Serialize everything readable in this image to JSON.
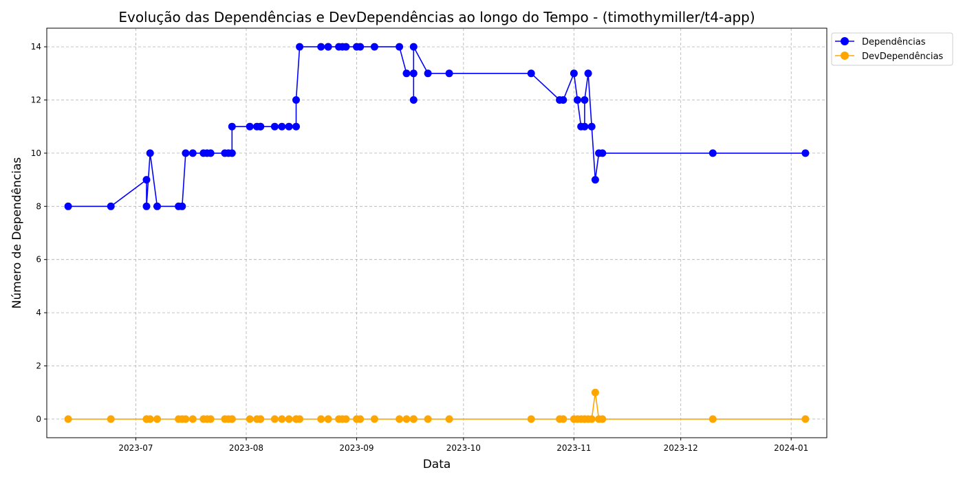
{
  "chart_data": {
    "type": "line",
    "title": "Evolução das Dependências e DevDependências ao longo do Tempo - (timothymiller/t4-app)",
    "xlabel": "Data",
    "ylabel": "Número de Dependências",
    "xlim": [
      "2023-06-06",
      "2024-01-11"
    ],
    "ylim": [
      -0.7,
      14.7
    ],
    "grid": true,
    "legend_position": "outside-top-right",
    "x_ticks": [
      "2023-07",
      "2023-08",
      "2023-09",
      "2023-10",
      "2023-11",
      "2023-12",
      "2024-01"
    ],
    "y_ticks": [
      0,
      2,
      4,
      6,
      8,
      10,
      12,
      14
    ],
    "x": [
      "2023-06-12",
      "2023-06-24",
      "2023-07-04",
      "2023-07-04",
      "2023-07-05",
      "2023-07-07",
      "2023-07-13",
      "2023-07-14",
      "2023-07-15",
      "2023-07-17",
      "2023-07-20",
      "2023-07-21",
      "2023-07-22",
      "2023-07-26",
      "2023-07-27",
      "2023-07-28",
      "2023-07-28",
      "2023-08-02",
      "2023-08-04",
      "2023-08-05",
      "2023-08-05",
      "2023-08-09",
      "2023-08-11",
      "2023-08-13",
      "2023-08-15",
      "2023-08-15",
      "2023-08-16",
      "2023-08-22",
      "2023-08-24",
      "2023-08-24",
      "2023-08-27",
      "2023-08-28",
      "2023-08-29",
      "2023-09-01",
      "2023-09-02",
      "2023-09-06",
      "2023-09-13",
      "2023-09-15",
      "2023-09-17",
      "2023-09-17",
      "2023-09-17",
      "2023-09-21",
      "2023-09-27",
      "2023-10-20",
      "2023-10-28",
      "2023-10-29",
      "2023-11-01",
      "2023-11-02",
      "2023-11-03",
      "2023-11-04",
      "2023-11-04",
      "2023-11-05",
      "2023-11-06",
      "2023-11-07",
      "2023-11-08",
      "2023-11-09",
      "2023-12-10",
      "2024-01-05"
    ],
    "series": [
      {
        "name": "Dependências",
        "color": "#0000ff",
        "values": [
          8,
          8,
          9,
          8,
          10,
          8,
          8,
          8,
          10,
          10,
          10,
          10,
          10,
          10,
          10,
          10,
          11,
          11,
          11,
          11,
          11,
          11,
          11,
          11,
          11,
          12,
          14,
          14,
          14,
          14,
          14,
          14,
          14,
          14,
          14,
          14,
          14,
          13,
          13,
          12,
          14,
          13,
          13,
          13,
          12,
          12,
          13,
          12,
          11,
          11,
          12,
          13,
          11,
          9,
          10,
          10,
          10,
          10
        ]
      },
      {
        "name": "DevDependências",
        "color": "#ffa500",
        "values": [
          0,
          0,
          0,
          0,
          0,
          0,
          0,
          0,
          0,
          0,
          0,
          0,
          0,
          0,
          0,
          0,
          0,
          0,
          0,
          0,
          0,
          0,
          0,
          0,
          0,
          0,
          0,
          0,
          0,
          0,
          0,
          0,
          0,
          0,
          0,
          0,
          0,
          0,
          0,
          0,
          0,
          0,
          0,
          0,
          0,
          0,
          0,
          0,
          0,
          0,
          0,
          0,
          0,
          1,
          0,
          0,
          0,
          0
        ]
      }
    ]
  }
}
